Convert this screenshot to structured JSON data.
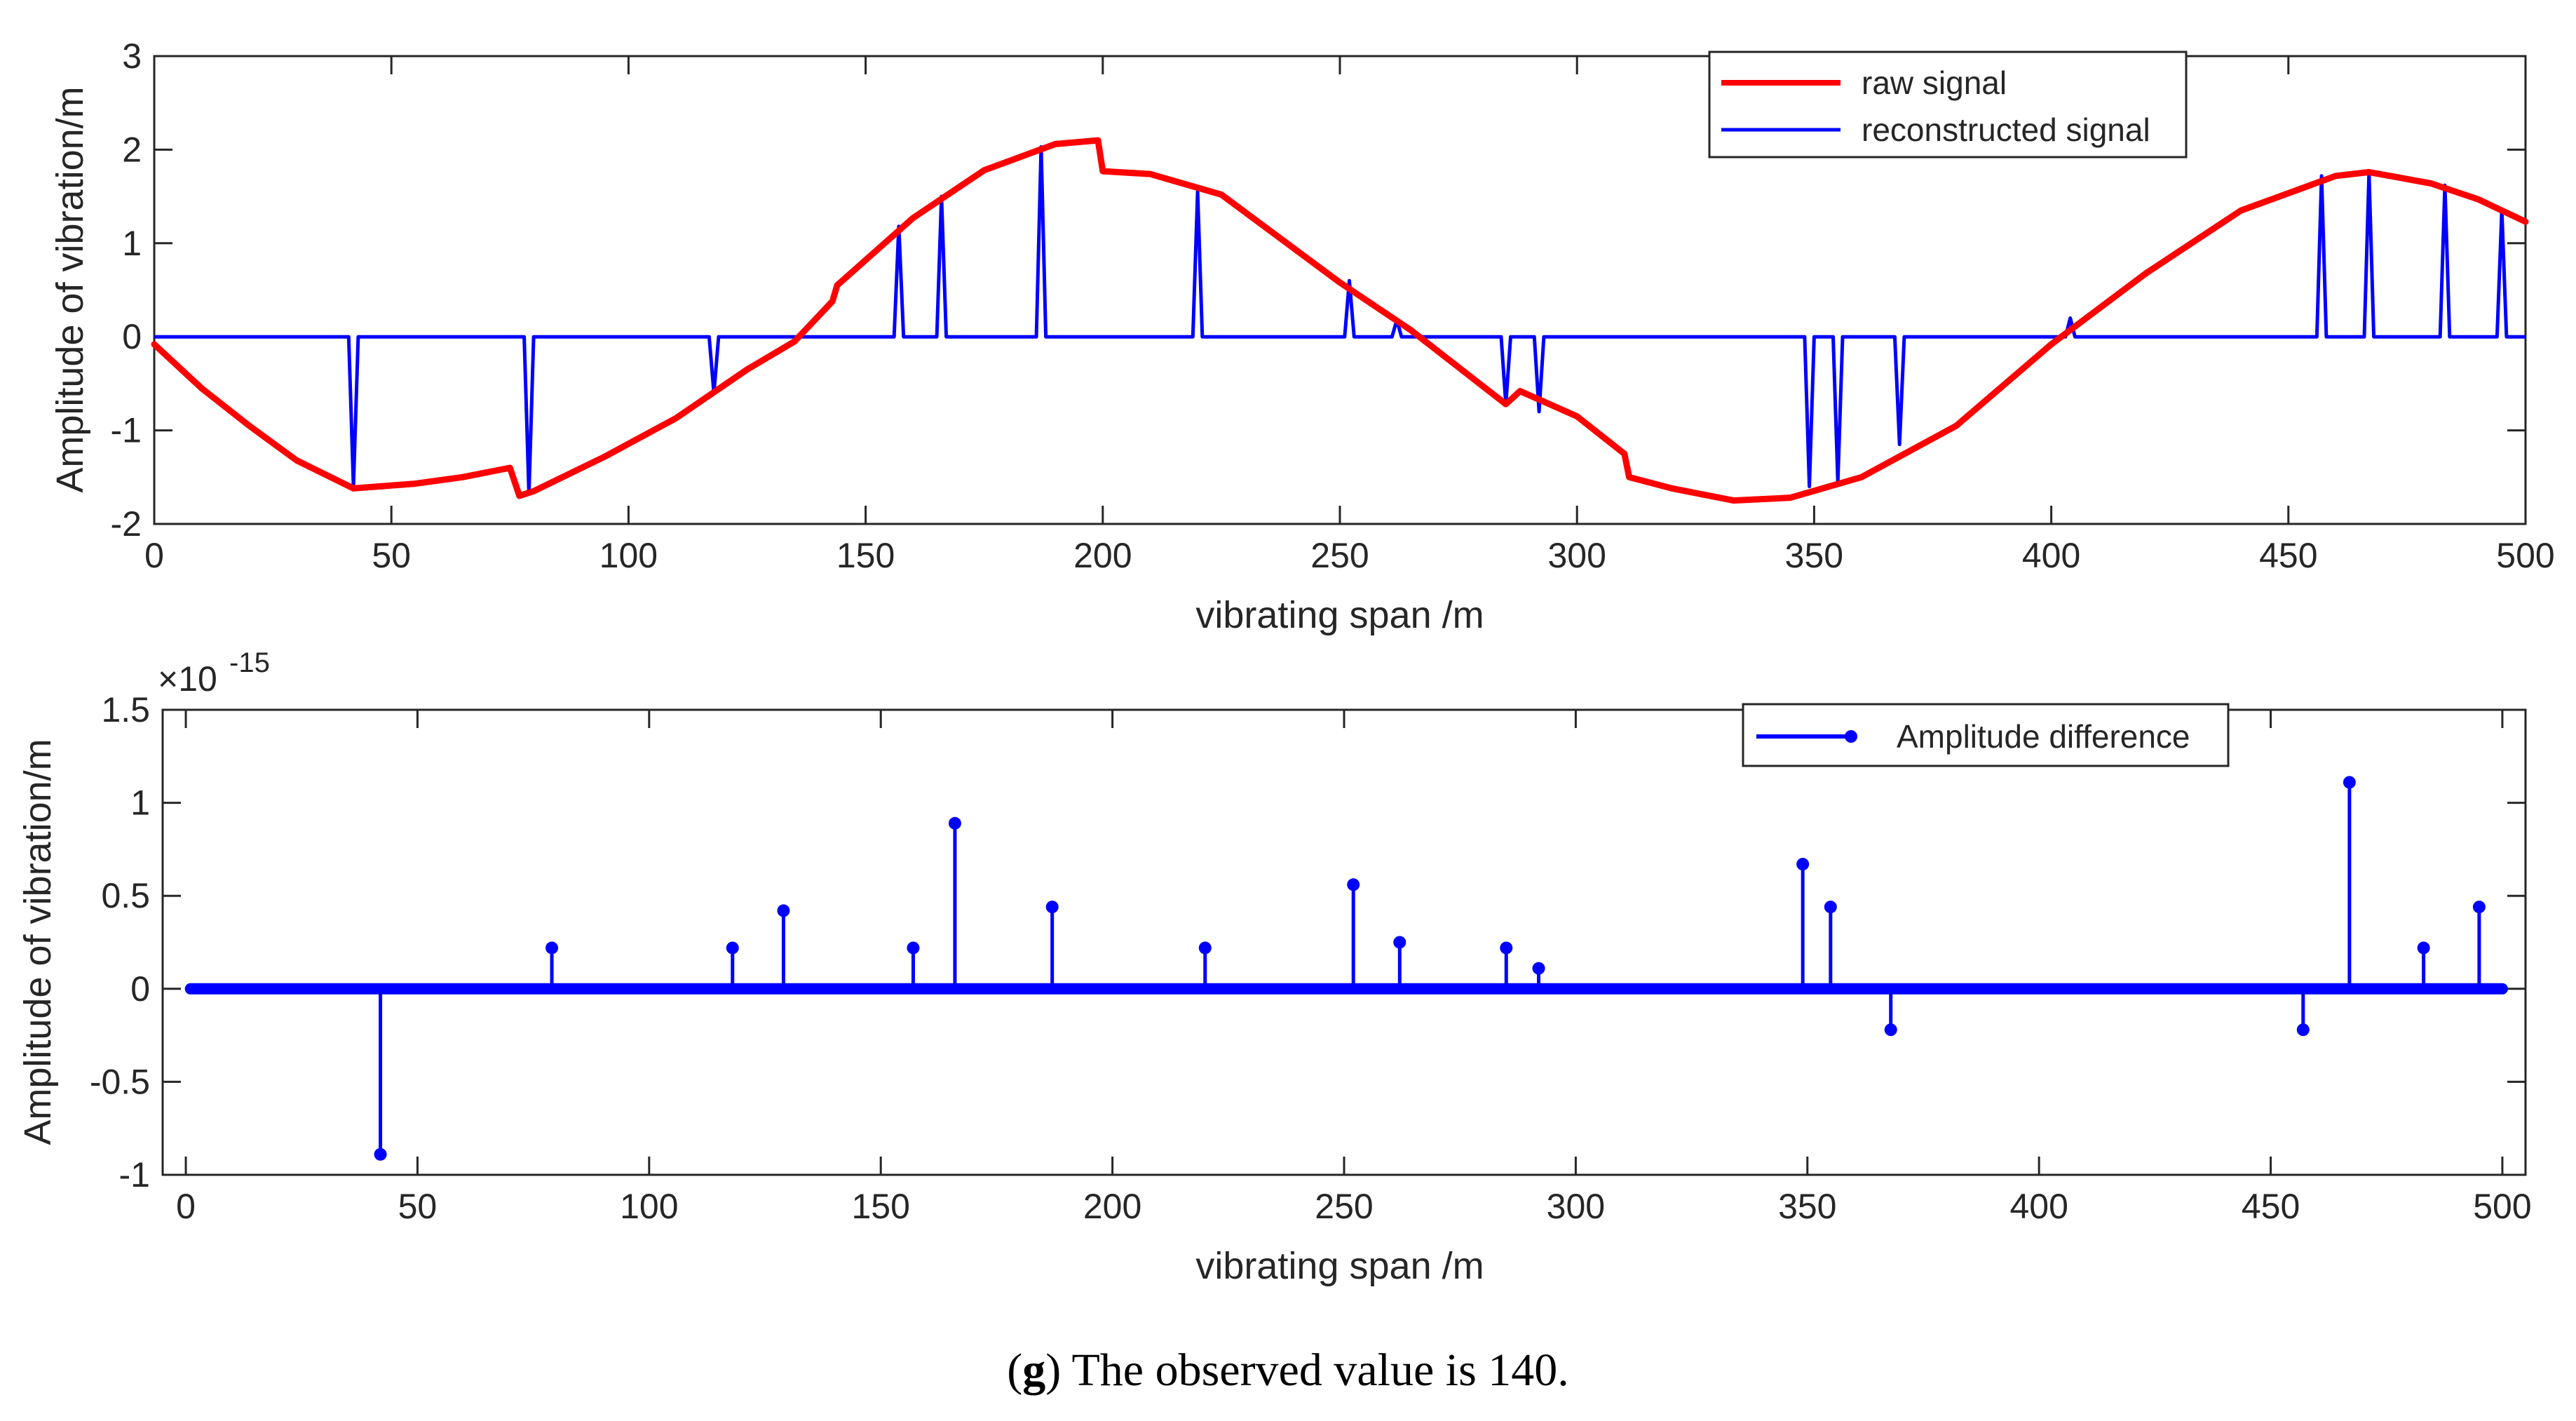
{
  "caption": {
    "letter": "g",
    "open": "(",
    "close": ")",
    "text": " The observed value is 140."
  },
  "colors": {
    "raw": "#ff0000",
    "reconstructed": "#0000ff",
    "stem": "#0000ff",
    "axis": "#262626",
    "grid_box": "#262626"
  },
  "chart_data": [
    {
      "type": "line",
      "xlabel": "vibrating span /m",
      "ylabel": "Amplitude of vibration/m",
      "xlim": [
        0,
        500
      ],
      "ylim": [
        -2,
        3
      ],
      "xticks": [
        0,
        50,
        100,
        150,
        200,
        250,
        300,
        350,
        400,
        450,
        500
      ],
      "yticks": [
        -2,
        -1,
        0,
        1,
        2,
        3
      ],
      "legend": {
        "placement": "top-right",
        "entries": [
          "raw signal",
          "reconstructed signal"
        ]
      },
      "series": [
        {
          "name": "raw signal",
          "x": [
            0,
            10,
            20,
            30,
            42,
            55,
            65,
            75,
            77,
            80,
            95,
            110,
            125,
            135,
            143,
            144,
            150,
            160,
            175,
            190,
            199,
            200,
            210,
            225,
            250,
            265,
            285,
            288,
            300,
            310,
            311,
            320,
            333,
            345,
            360,
            380,
            400,
            420,
            440,
            460,
            467,
            480,
            490,
            500
          ],
          "y": [
            -0.08,
            -0.55,
            -0.95,
            -1.32,
            -1.62,
            -1.57,
            -1.5,
            -1.4,
            -1.7,
            -1.65,
            -1.28,
            -0.87,
            -0.35,
            -0.05,
            0.38,
            0.55,
            0.82,
            1.27,
            1.78,
            2.06,
            2.1,
            1.77,
            1.74,
            1.52,
            0.58,
            0.07,
            -0.72,
            -0.58,
            -0.85,
            -1.25,
            -1.5,
            -1.62,
            -1.75,
            -1.72,
            -1.5,
            -0.95,
            -0.08,
            0.68,
            1.35,
            1.72,
            1.76,
            1.64,
            1.47,
            1.23
          ]
        },
        {
          "name": "reconstructed signal",
          "spikes": [
            {
              "x": 42,
              "y": -1.6
            },
            {
              "x": 79,
              "y": -1.68
            },
            {
              "x": 118,
              "y": -0.6
            },
            {
              "x": 129,
              "y": 0
            },
            {
              "x": 157,
              "y": 1.18
            },
            {
              "x": 166,
              "y": 1.5
            },
            {
              "x": 187,
              "y": 2.03
            },
            {
              "x": 220,
              "y": 1.55
            },
            {
              "x": 252,
              "y": 0.6
            },
            {
              "x": 262,
              "y": 0.18
            },
            {
              "x": 285,
              "y": -0.72
            },
            {
              "x": 292,
              "y": -0.8
            },
            {
              "x": 349,
              "y": -1.6
            },
            {
              "x": 355,
              "y": -1.55
            },
            {
              "x": 368,
              "y": -1.15
            },
            {
              "x": 404,
              "y": 0.2
            },
            {
              "x": 457,
              "y": 1.72
            },
            {
              "x": 467,
              "y": 1.75
            },
            {
              "x": 483,
              "y": 1.62
            },
            {
              "x": 495,
              "y": 1.35
            }
          ]
        }
      ]
    },
    {
      "type": "stem",
      "xlabel": "vibrating span /m",
      "ylabel": "Amplitude of vibration/m",
      "exponent_label": {
        "base": "×10",
        "power": "-15"
      },
      "xlim": [
        -5,
        505
      ],
      "ylim": [
        -1,
        1.5
      ],
      "xticks": [
        0,
        50,
        100,
        150,
        200,
        250,
        300,
        350,
        400,
        450,
        500
      ],
      "yticks": [
        -1,
        -0.5,
        0,
        0.5,
        1,
        1.5
      ],
      "legend": {
        "placement": "top-right",
        "entries": [
          "Amplitude difference"
        ]
      },
      "baseline_range": [
        1,
        500
      ],
      "series": [
        {
          "name": "Amplitude difference",
          "stems": [
            {
              "x": 42,
              "y": -0.89
            },
            {
              "x": 79,
              "y": 0.22
            },
            {
              "x": 118,
              "y": 0.22
            },
            {
              "x": 129,
              "y": 0.42
            },
            {
              "x": 157,
              "y": 0.22
            },
            {
              "x": 166,
              "y": 0.89
            },
            {
              "x": 187,
              "y": 0.44
            },
            {
              "x": 220,
              "y": 0.22
            },
            {
              "x": 252,
              "y": 0.56
            },
            {
              "x": 262,
              "y": 0.25
            },
            {
              "x": 285,
              "y": 0.22
            },
            {
              "x": 292,
              "y": 0.11
            },
            {
              "x": 349,
              "y": 0.67
            },
            {
              "x": 355,
              "y": 0.44
            },
            {
              "x": 368,
              "y": -0.22
            },
            {
              "x": 457,
              "y": -0.22
            },
            {
              "x": 467,
              "y": 1.11
            },
            {
              "x": 483,
              "y": 0.22
            },
            {
              "x": 495,
              "y": 0.44
            }
          ]
        }
      ]
    }
  ]
}
